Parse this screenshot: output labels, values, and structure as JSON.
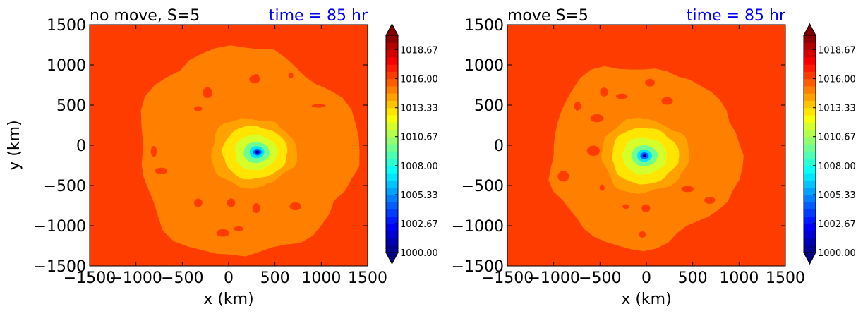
{
  "chart_data": [
    {
      "type": "heatmap",
      "title_left": "no move, S=5",
      "title_right": "time = 85 hr",
      "title_right_color": "#0000ff",
      "xlabel": "x (km)",
      "ylabel": "y (km)",
      "xlim": [
        -1500,
        1500
      ],
      "ylim": [
        -1500,
        1500
      ],
      "xticks": [
        "−1500",
        "−1000",
        "−500",
        "0",
        "500",
        "1000",
        "1500"
      ],
      "yticks": [
        "1500",
        "1000",
        "500",
        "0",
        "−500",
        "−1000",
        "−1500"
      ],
      "field": {
        "background_level": 1016.0,
        "rings": [
          {
            "level": 1015.3,
            "center": [
              180,
              -80
            ],
            "radius": [
              1180,
              1300
            ]
          },
          {
            "level": 1014.0,
            "center": [
              260,
              -90
            ],
            "radius": [
              460,
              430
            ]
          },
          {
            "level": 1013.0,
            "center": [
              280,
              -90
            ],
            "radius": [
              350,
              330
            ]
          },
          {
            "level": 1011.5,
            "center": [
              290,
              -90
            ],
            "radius": [
              230,
              220
            ]
          },
          {
            "level": 1009.5,
            "center": [
              300,
              -90
            ],
            "radius": [
              140,
              130
            ]
          },
          {
            "level": 1007.0,
            "center": [
              305,
              -85
            ],
            "radius": [
              80,
              75
            ]
          },
          {
            "level": 1004.0,
            "center": [
              310,
              -85
            ],
            "radius": [
              45,
              42
            ]
          },
          {
            "level": 1001.0,
            "center": [
              310,
              -85
            ],
            "radius": [
              22,
              20
            ]
          }
        ]
      },
      "colorbar": {
        "vmin": 1000.0,
        "vmax": 1020.0,
        "extend": "both",
        "tick_labels": [
          "1018.67",
          "1016.00",
          "1013.33",
          "1010.67",
          "1008.00",
          "1005.33",
          "1002.67",
          "1000.00"
        ],
        "tick_values": [
          1018.67,
          1016.0,
          1013.33,
          1010.67,
          1008.0,
          1005.33,
          1002.67,
          1000.0
        ]
      }
    },
    {
      "type": "heatmap",
      "title_left": "move S=5",
      "title_right": "time = 85 hr",
      "title_right_color": "#0000ff",
      "xlabel": "x (km)",
      "ylabel": "",
      "xlim": [
        -1500,
        1500
      ],
      "ylim": [
        -1500,
        1500
      ],
      "xticks": [
        "−1500",
        "−1000",
        "−500",
        "0",
        "500",
        "1000",
        "1500"
      ],
      "yticks": [
        "1500",
        "1000",
        "500",
        "0",
        "−500",
        "−1000",
        "−1500"
      ],
      "field": {
        "background_level": 1016.0,
        "rings": [
          {
            "level": 1015.3,
            "center": [
              -30,
              -130
            ],
            "radius": [
              1030,
              1120
            ]
          },
          {
            "level": 1014.0,
            "center": [
              -20,
              -130
            ],
            "radius": [
              470,
              460
            ]
          },
          {
            "level": 1013.0,
            "center": [
              -20,
              -130
            ],
            "radius": [
              360,
              350
            ]
          },
          {
            "level": 1011.5,
            "center": [
              -20,
              -130
            ],
            "radius": [
              240,
              230
            ]
          },
          {
            "level": 1009.5,
            "center": [
              -20,
              -130
            ],
            "radius": [
              140,
              130
            ]
          },
          {
            "level": 1007.0,
            "center": [
              -20,
              -130
            ],
            "radius": [
              80,
              75
            ]
          },
          {
            "level": 1004.0,
            "center": [
              -20,
              -130
            ],
            "radius": [
              45,
              42
            ]
          },
          {
            "level": 1001.0,
            "center": [
              -20,
              -130
            ],
            "radius": [
              20,
              18
            ]
          }
        ]
      },
      "colorbar": {
        "vmin": 1000.0,
        "vmax": 1020.0,
        "extend": "both",
        "tick_labels": [
          "1018.67",
          "1016.00",
          "1013.33",
          "1010.67",
          "1008.00",
          "1005.33",
          "1002.67",
          "1000.00"
        ],
        "tick_values": [
          1018.67,
          1016.0,
          1013.33,
          1010.67,
          1008.0,
          1005.33,
          1002.67,
          1000.0
        ]
      }
    }
  ],
  "colormap": "jet"
}
